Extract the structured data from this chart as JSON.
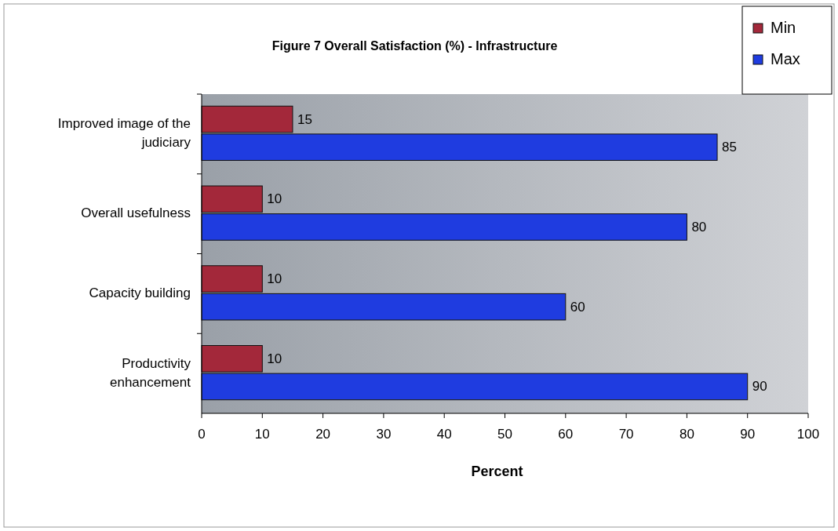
{
  "chart_data": {
    "type": "bar",
    "orientation": "horizontal",
    "title": "Figure 7 Overall Satisfaction (%) - Infrastructure",
    "xlabel": "Percent",
    "categories": [
      "Improved image of the judiciary",
      "Overall usefulness",
      "Capacity building",
      "Productivity enhancement"
    ],
    "series": [
      {
        "name": "Min",
        "color": "#a3283a",
        "values": [
          15,
          10,
          10,
          10
        ]
      },
      {
        "name": "Max",
        "color": "#1f3ce0",
        "values": [
          85,
          80,
          60,
          90
        ]
      }
    ],
    "xlim": [
      0,
      100
    ],
    "xticks": [
      0,
      10,
      20,
      30,
      40,
      50,
      60,
      70,
      80,
      90,
      100
    ],
    "data_labels": true,
    "legend": "top right",
    "grid": false
  }
}
